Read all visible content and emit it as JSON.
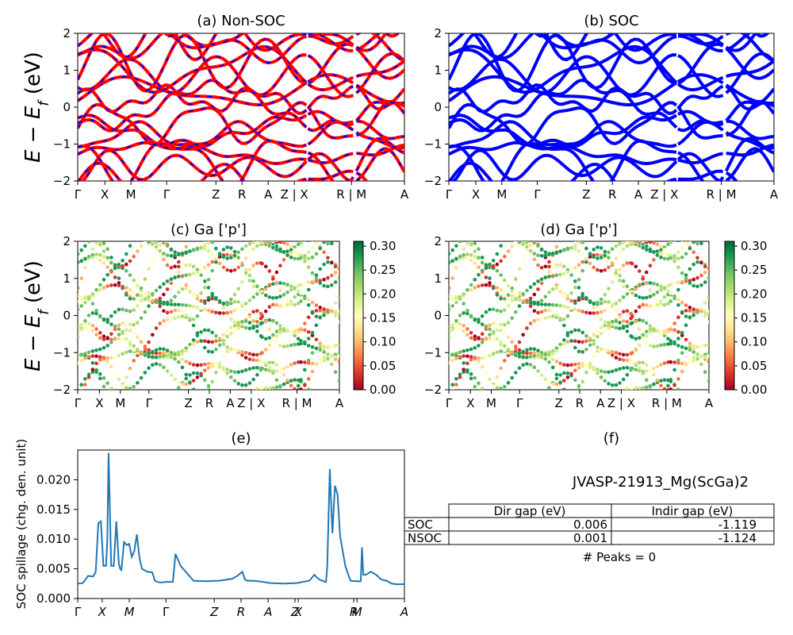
{
  "chart_data": [
    {
      "id": "a",
      "type": "line",
      "title": "(a) Non-SOC",
      "ylabel": "E - E_f (eV)",
      "ylim": [
        -2,
        2
      ],
      "yticks": [
        "2",
        "1",
        "0",
        "−1",
        "−2"
      ],
      "kpoints": [
        "Γ",
        "X",
        "M",
        "Γ",
        "Z",
        "R",
        "A",
        "Z | X",
        "R | M",
        "A"
      ],
      "style": "red bands with blue dashes"
    },
    {
      "id": "b",
      "type": "line",
      "title": "(b) SOC",
      "ylim": [
        -2,
        2
      ],
      "yticks": [
        "2",
        "1",
        "0",
        "−1",
        "−2"
      ],
      "kpoints": [
        "Γ",
        "X",
        "M",
        "Γ",
        "Z",
        "R",
        "A",
        "Z | X",
        "R | M",
        "A"
      ],
      "style": "blue bands"
    },
    {
      "id": "c",
      "type": "scatter",
      "title": "(c)  Ga ['p']",
      "ylabel": "E - E_f (eV)",
      "ylim": [
        -2,
        2
      ],
      "yticks": [
        "2",
        "1",
        "0",
        "−1",
        "−2"
      ],
      "kpoints": [
        "Γ",
        "X",
        "M",
        "Γ",
        "Z",
        "R",
        "A",
        "Z | X",
        "R | M",
        "A"
      ],
      "colorbar_ticks": [
        "0.30",
        "0.25",
        "0.20",
        "0.15",
        "0.10",
        "0.05",
        "0.00"
      ],
      "colormap": "RdYlGn"
    },
    {
      "id": "d",
      "type": "scatter",
      "title": "(d) Ga ['p']",
      "ylim": [
        -2,
        2
      ],
      "yticks": [
        "2",
        "1",
        "0",
        "−1",
        "−2"
      ],
      "kpoints": [
        "Γ",
        "X",
        "M",
        "Γ",
        "Z",
        "R",
        "A",
        "Z | X",
        "R | M",
        "A"
      ],
      "colorbar_ticks": [
        "0.30",
        "0.25",
        "0.20",
        "0.15",
        "0.10",
        "0.05",
        "0.00"
      ],
      "colormap": "RdYlGn"
    },
    {
      "id": "e",
      "type": "line",
      "title": "(e)",
      "ylabel": "SOC spillage (chg. den. unit)",
      "ylim": [
        0,
        0.025
      ],
      "yticks": [
        "0.000",
        "0.005",
        "0.010",
        "0.015",
        "0.020"
      ],
      "xticks": [
        "Γ",
        "X",
        "M",
        "Γ",
        "Z",
        "R",
        "A",
        "Z",
        "X",
        "R",
        "M",
        "A"
      ],
      "color": "#1f77b4",
      "x": [
        0,
        2,
        4,
        6,
        7,
        8,
        9,
        10,
        11,
        11.5,
        12,
        13,
        14,
        15,
        16,
        16.5,
        17,
        18,
        19,
        20,
        21,
        22,
        23,
        24,
        25,
        27,
        29,
        30,
        31,
        32,
        33,
        34,
        35,
        36,
        37,
        38,
        40,
        45,
        50,
        55,
        60,
        62,
        64,
        65,
        66,
        68,
        70,
        72,
        75,
        80,
        85,
        90,
        92,
        93,
        94,
        95,
        95.5,
        96,
        96.5,
        97,
        98,
        99,
        100,
        101,
        102,
        104,
        106,
        108,
        110,
        110.5,
        111,
        112,
        114,
        116,
        118,
        120,
        122,
        124,
        126,
        127
      ],
      "values": [
        0.0025,
        0.0026,
        0.0038,
        0.0037,
        0.0045,
        0.0127,
        0.013,
        0.0055,
        0.0055,
        0.0097,
        0.0245,
        0.0055,
        0.0055,
        0.013,
        0.0058,
        0.005,
        0.0048,
        0.0095,
        0.009,
        0.0092,
        0.007,
        0.008,
        0.0108,
        0.0068,
        0.005,
        0.0045,
        0.0044,
        0.003,
        0.0028,
        0.0027,
        0.0027,
        0.0028,
        0.0028,
        0.0028,
        0.0028,
        0.0075,
        0.0055,
        0.003,
        0.0029,
        0.003,
        0.0033,
        0.0038,
        0.0045,
        0.0032,
        0.003,
        0.003,
        0.0029,
        0.0028,
        0.0026,
        0.0025,
        0.0026,
        0.003,
        0.004,
        0.0035,
        0.0032,
        0.003,
        0.003,
        0.0028,
        0.0028,
        0.0055,
        0.0218,
        0.011,
        0.019,
        0.0175,
        0.0105,
        0.0055,
        0.003,
        0.0029,
        0.0029,
        0.0086,
        0.004,
        0.004,
        0.0045,
        0.004,
        0.0032,
        0.003,
        0.0025,
        0.0024,
        0.0024,
        0.0024
      ]
    }
  ],
  "info_panel": {
    "title": "(f)",
    "material": "JVASP-21913_Mg(ScGa)2",
    "table": {
      "headers": [
        "Dir gap (eV)",
        "Indir gap (eV)"
      ],
      "rows": [
        {
          "label": "SOC",
          "dir": "0.006",
          "indir": "-1.119"
        },
        {
          "label": "NSOC",
          "dir": "0.001",
          "indir": "-1.124"
        }
      ]
    },
    "peaks": "# Peaks = 0"
  }
}
